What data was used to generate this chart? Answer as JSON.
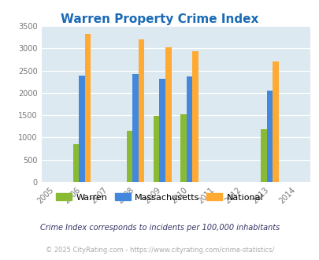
{
  "title": "Warren Property Crime Index",
  "title_color": "#1a6ab5",
  "years": [
    2005,
    2006,
    2007,
    2008,
    2009,
    2010,
    2011,
    2012,
    2013,
    2014
  ],
  "data_years": [
    2006,
    2008,
    2009,
    2010,
    2013
  ],
  "warren": [
    840,
    1150,
    1490,
    1520,
    1185
  ],
  "massachusetts": [
    2390,
    2430,
    2310,
    2360,
    2050
  ],
  "national": [
    3330,
    3200,
    3030,
    2940,
    2710
  ],
  "warren_color": "#88bb33",
  "massachusetts_color": "#4488dd",
  "national_color": "#ffaa33",
  "bg_color": "#dce9f0",
  "ylim": [
    0,
    3500
  ],
  "yticks": [
    0,
    500,
    1000,
    1500,
    2000,
    2500,
    3000,
    3500
  ],
  "bar_width": 0.22,
  "legend_labels": [
    "Warren",
    "Massachusetts",
    "National"
  ],
  "footnote1": "Crime Index corresponds to incidents per 100,000 inhabitants",
  "footnote2": "© 2025 CityRating.com - https://www.cityrating.com/crime-statistics/",
  "footnote1_color": "#333366",
  "footnote2_color": "#aaaaaa"
}
